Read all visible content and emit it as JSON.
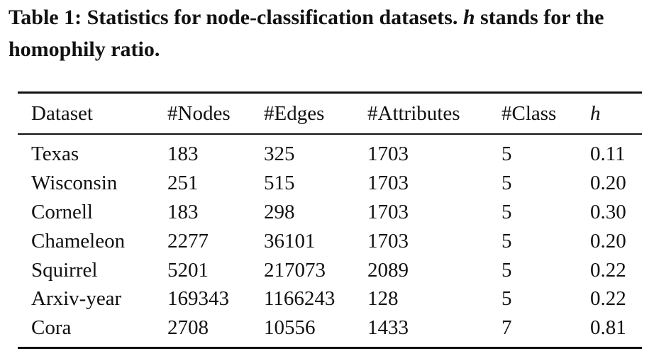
{
  "caption": {
    "prefix": "Table 1: Statistics for node-classification datasets. ",
    "symbol": "h",
    "suffix": " stands for the homophily ratio."
  },
  "table": {
    "headers": [
      "Dataset",
      "#Nodes",
      "#Edges",
      "#Attributes",
      "#Class",
      "h"
    ],
    "rows": [
      [
        "Texas",
        "183",
        "325",
        "1703",
        "5",
        "0.11"
      ],
      [
        "Wisconsin",
        "251",
        "515",
        "1703",
        "5",
        "0.20"
      ],
      [
        "Cornell",
        "183",
        "298",
        "1703",
        "5",
        "0.30"
      ],
      [
        "Chameleon",
        "2277",
        "36101",
        "1703",
        "5",
        "0.20"
      ],
      [
        "Squirrel",
        "5201",
        "217073",
        "2089",
        "5",
        "0.22"
      ],
      [
        "Arxiv-year",
        "169343",
        "1166243",
        "128",
        "5",
        "0.22"
      ],
      [
        "Cora",
        "2708",
        "10556",
        "1433",
        "7",
        "0.81"
      ]
    ]
  }
}
